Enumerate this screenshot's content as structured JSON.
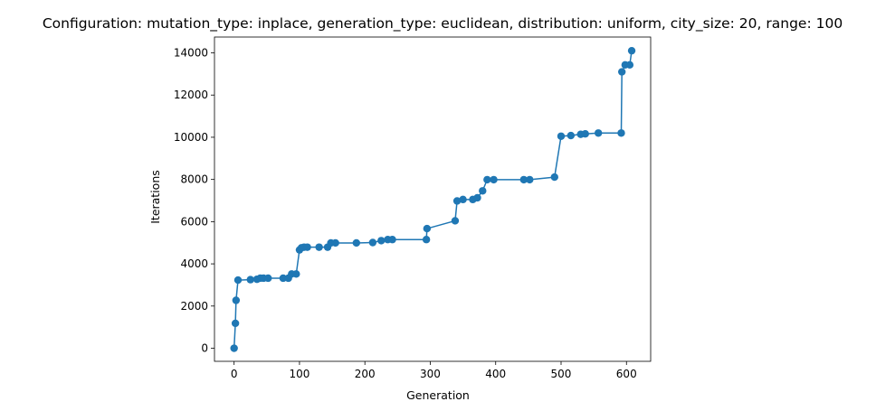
{
  "chart_data": {
    "type": "line",
    "title": "Configuration: mutation_type: inplace, generation_type: euclidean, distribution: uniform, city_size: 20, range: 100",
    "xlabel": "Generation",
    "ylabel": "Iterations",
    "xlim": [
      -30,
      637
    ],
    "ylim": [
      -620,
      14750
    ],
    "xticks": [
      0,
      100,
      200,
      300,
      400,
      500,
      600
    ],
    "yticks": [
      0,
      2000,
      4000,
      6000,
      8000,
      10000,
      12000,
      14000
    ],
    "grid": false,
    "marker": "circle",
    "color": "#1f77b4",
    "series": [
      {
        "x": [
          0,
          2,
          3,
          6,
          25,
          35,
          40,
          45,
          52,
          75,
          83,
          88,
          95,
          100,
          103,
          107,
          112,
          130,
          143,
          148,
          155,
          187,
          212,
          225,
          235,
          242,
          294,
          295,
          338,
          341,
          350,
          365,
          372,
          380,
          387,
          397,
          443,
          452,
          490,
          500,
          515,
          530,
          537,
          557,
          592,
          593,
          598,
          605,
          608
        ],
        "y": [
          0,
          1180,
          2270,
          3230,
          3250,
          3270,
          3320,
          3320,
          3320,
          3320,
          3320,
          3520,
          3520,
          4660,
          4760,
          4790,
          4790,
          4790,
          4790,
          4990,
          4990,
          4990,
          5010,
          5100,
          5150,
          5150,
          5150,
          5670,
          6040,
          6980,
          7050,
          7050,
          7130,
          7460,
          7990,
          7990,
          7990,
          7990,
          8110,
          10050,
          10080,
          10140,
          10160,
          10200,
          10200,
          13100,
          13430,
          13430,
          14100
        ]
      }
    ]
  }
}
